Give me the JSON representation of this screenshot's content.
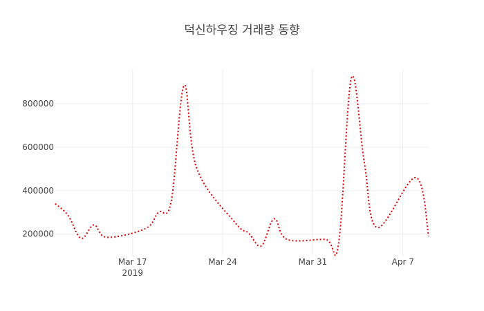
{
  "chart_data": {
    "type": "line",
    "title": "덕신하우징 거래량 동향",
    "xlabel": "",
    "ylabel": "",
    "x_range": [
      "2019-03-11",
      "2019-04-09"
    ],
    "ylim": [
      100000,
      960000
    ],
    "y_ticks": [
      200000,
      400000,
      600000,
      800000
    ],
    "y_tick_labels": [
      "200000",
      "400000",
      "600000",
      "800000"
    ],
    "x_ticks": [
      {
        "date": "2019-03-17",
        "label": "Mar 17",
        "sublabel": "2019"
      },
      {
        "date": "2019-03-24",
        "label": "Mar 24",
        "sublabel": ""
      },
      {
        "date": "2019-03-31",
        "label": "Mar 31",
        "sublabel": ""
      },
      {
        "date": "2019-04-07",
        "label": "Apr 7",
        "sublabel": ""
      }
    ],
    "grid": true,
    "series": [
      {
        "color": "#e00000",
        "dash": "dot",
        "x": [
          "2019-03-11",
          "2019-03-12",
          "2019-03-13",
          "2019-03-14",
          "2019-03-15",
          "2019-03-18",
          "2019-03-19",
          "2019-03-20",
          "2019-03-21",
          "2019-03-22",
          "2019-03-25",
          "2019-03-26",
          "2019-03-27",
          "2019-03-28",
          "2019-03-29",
          "2019-04-01",
          "2019-04-02",
          "2019-04-03",
          "2019-04-04",
          "2019-04-05",
          "2019-04-08",
          "2019-04-09"
        ],
        "y": [
          340000,
          285000,
          180000,
          242000,
          185000,
          225000,
          300000,
          350000,
          885000,
          500000,
          250000,
          205000,
          145000,
          270000,
          175000,
          175000,
          155000,
          920000,
          530000,
          230000,
          460000,
          190000
        ]
      }
    ]
  }
}
